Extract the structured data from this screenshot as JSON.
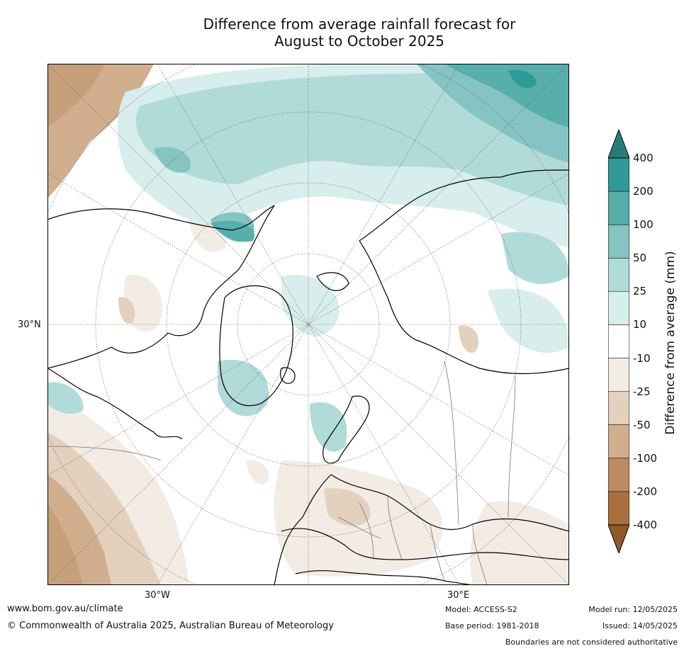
{
  "title_line1": "Difference from average rainfall forecast for",
  "title_line2": "August to October 2025",
  "axis_labels": {
    "lat_30n": "30°N",
    "lon_30w": "30°W",
    "lon_30e": "30°E"
  },
  "legend": {
    "label": "Difference from average (mm)",
    "ticks": [
      "400",
      "200",
      "100",
      "50",
      "25",
      "10",
      "-10",
      "-25",
      "-50",
      "-100",
      "-200",
      "-400"
    ],
    "colors": [
      "#267d78",
      "#2f9a96",
      "#57aeab",
      "#85c4c2",
      "#b1dbd9",
      "#d8eeec",
      "#ffffff",
      "#f2ece5",
      "#e3d0bd",
      "#d1ae8e",
      "#be8c63",
      "#a96f3c",
      "#8f5a28"
    ]
  },
  "footer": {
    "url": "www.bom.gov.au/climate",
    "copyright": "© Commonwealth of Australia 2025, Australian Bureau of Meteorology",
    "model": "Model: ACCESS-S2",
    "base_period": "Base period: 1981-2018",
    "model_run": "Model run: 12/05/2025",
    "issued": "Issued: 14/05/2025",
    "disclaimer": "Boundaries are not considered authoritative"
  }
}
